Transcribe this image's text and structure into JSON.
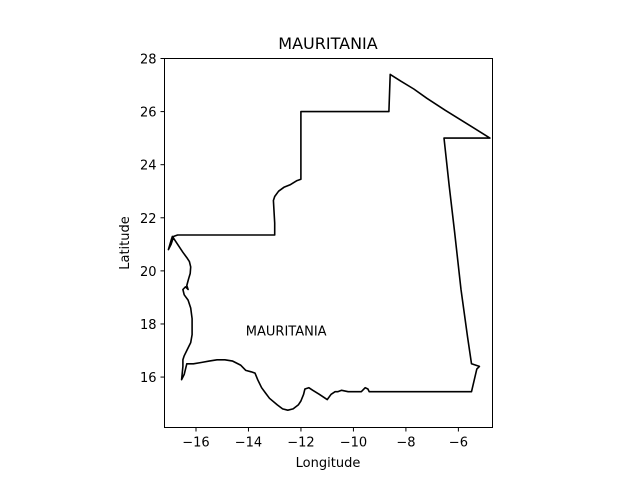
{
  "chart_data": {
    "type": "map",
    "title": "MAURITANIA",
    "xlabel": "Longitude",
    "ylabel": "Latitude",
    "xlim": [
      -17.2,
      -4.7
    ],
    "ylim": [
      14.1,
      28.0
    ],
    "xticks": [
      -16,
      -14,
      -12,
      -10,
      -8,
      -6
    ],
    "xtick_labels": [
      "−16",
      "−14",
      "−12",
      "−10",
      "−8",
      "−6"
    ],
    "yticks": [
      16,
      18,
      20,
      22,
      24,
      26,
      28
    ],
    "ytick_labels": [
      "16",
      "18",
      "20",
      "22",
      "24",
      "26",
      "28"
    ],
    "grid": false,
    "boundary_color": "#000000",
    "annotations": [
      {
        "text": "MAURITANIA",
        "lon": -14.1,
        "lat": 17.75
      }
    ],
    "boundary": {
      "name": "MAURITANIA",
      "lon": [
        -17.05,
        -16.95,
        -16.9,
        -16.7,
        -16.5,
        -16.35,
        -16.25,
        -16.2,
        -16.22,
        -16.28,
        -16.35,
        -16.3,
        -16.4,
        -16.5,
        -16.45,
        -16.3,
        -16.2,
        -16.15,
        -16.15,
        -16.2,
        -16.35,
        -16.45,
        -16.5,
        -16.5,
        -16.55,
        -16.45,
        -16.35,
        -16.1,
        -15.8,
        -15.5,
        -15.2,
        -14.9,
        -14.6,
        -14.3,
        -14.1,
        -13.9,
        -13.75,
        -13.65,
        -13.5,
        -13.35,
        -13.2,
        -12.9,
        -12.7,
        -12.5,
        -12.3,
        -12.1,
        -12.0,
        -11.9,
        -11.85,
        -11.7,
        -11.55,
        -11.3,
        -11.0,
        -10.85,
        -10.7,
        -10.6,
        -10.45,
        -10.2,
        -9.95,
        -9.7,
        -9.55,
        -9.45,
        -9.4,
        -5.5,
        -5.3,
        -5.2,
        -5.5,
        -5.65,
        -5.9,
        -6.15,
        -6.35,
        -6.55,
        -4.8,
        -5.6,
        -6.5,
        -7.2,
        -7.7,
        -8.2,
        -8.6,
        -8.65,
        -11.95,
        -12.0,
        -12.0,
        -12.15,
        -12.4,
        -12.65,
        -12.85,
        -13.0,
        -13.05,
        -13.0,
        -13.0,
        -13.0,
        -16.7,
        -16.85,
        -16.95,
        -17.05
      ],
      "lat": [
        20.8,
        21.15,
        21.3,
        21.0,
        20.7,
        20.5,
        20.35,
        20.15,
        19.9,
        19.7,
        19.45,
        19.3,
        19.4,
        19.3,
        19.1,
        18.9,
        18.6,
        18.2,
        17.6,
        17.3,
        17.0,
        16.8,
        16.65,
        16.4,
        15.9,
        16.1,
        16.5,
        16.5,
        16.55,
        16.6,
        16.65,
        16.65,
        16.6,
        16.45,
        16.25,
        16.2,
        16.15,
        15.9,
        15.6,
        15.4,
        15.2,
        14.95,
        14.8,
        14.75,
        14.8,
        14.95,
        15.1,
        15.35,
        15.55,
        15.6,
        15.5,
        15.35,
        15.15,
        15.35,
        15.45,
        15.45,
        15.5,
        15.45,
        15.45,
        15.45,
        15.6,
        15.55,
        15.45,
        15.45,
        16.3,
        16.4,
        16.5,
        17.5,
        19.3,
        21.5,
        23.2,
        25.0,
        25.0,
        25.5,
        26.05,
        26.5,
        26.85,
        27.15,
        27.4,
        26.0,
        26.0,
        26.0,
        23.45,
        23.4,
        23.25,
        23.15,
        23.0,
        22.8,
        22.65,
        21.8,
        21.5,
        21.35,
        21.35,
        21.3,
        21.0,
        20.8
      ]
    }
  }
}
